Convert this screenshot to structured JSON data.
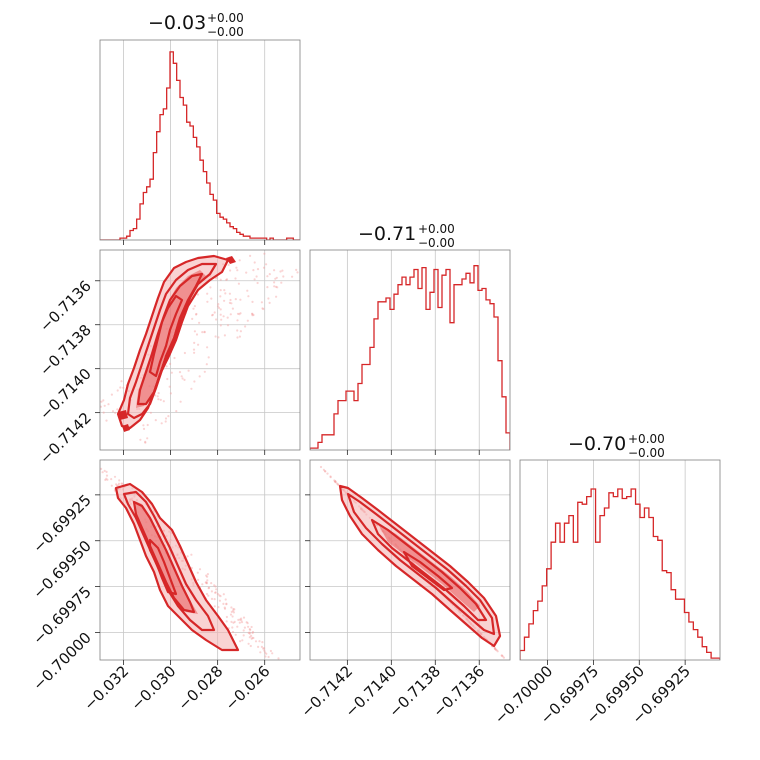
{
  "chart_data": {
    "type": "corner",
    "color": "#d62728",
    "parameters": [
      {
        "title_value": "−0.03",
        "title_upper": "+0.00",
        "title_lower": "−0.00",
        "range": [
          -0.033,
          -0.0245
        ],
        "ticks": [
          -0.032,
          -0.03,
          -0.028,
          -0.026
        ],
        "tick_labels": [
          "−0.032",
          "−0.030",
          "−0.028",
          "−0.026"
        ]
      },
      {
        "title_value": "−0.71",
        "title_upper": "+0.00",
        "title_lower": "−0.00",
        "range": [
          -0.71437,
          -0.71346
        ],
        "ticks": [
          -0.7142,
          -0.714,
          -0.7138,
          -0.7136
        ],
        "tick_labels": [
          "−0.7142",
          "−0.7140",
          "−0.7138",
          "−0.7136"
        ]
      },
      {
        "title_value": "−0.70",
        "title_upper": "+0.00",
        "title_lower": "−0.00",
        "range": [
          -0.70015,
          -0.69906
        ],
        "ticks": [
          -0.7,
          -0.69975,
          -0.6995,
          -0.69925
        ],
        "tick_labels": [
          "−0.70000",
          "−0.69975",
          "−0.69950",
          "−0.69925"
        ]
      }
    ],
    "histograms": [
      {
        "parameter": 0,
        "edges_range": [
          -0.033,
          -0.0245
        ],
        "max": 1.0,
        "counts": [
          0,
          0,
          0,
          0,
          0,
          0,
          0.01,
          0.01,
          0.02,
          0.05,
          0.06,
          0.11,
          0.19,
          0.25,
          0.28,
          0.32,
          0.46,
          0.57,
          0.66,
          0.69,
          0.8,
          0.99,
          0.93,
          0.84,
          0.75,
          0.71,
          0.62,
          0.6,
          0.54,
          0.49,
          0.42,
          0.36,
          0.3,
          0.24,
          0.21,
          0.14,
          0.12,
          0.11,
          0.09,
          0.07,
          0.06,
          0.04,
          0.03,
          0.02,
          0.02,
          0.01,
          0.01,
          0.01,
          0.01,
          0.01,
          0,
          0.01,
          0,
          0,
          0,
          0,
          0.01,
          0.01,
          0,
          0
        ]
      },
      {
        "parameter": 1,
        "edges_range": [
          -0.71437,
          -0.71346
        ],
        "max": 1.0,
        "counts": [
          0.01,
          0.01,
          0.04,
          0.08,
          0.08,
          0.08,
          0.19,
          0.26,
          0.26,
          0.31,
          0.31,
          0.26,
          0.35,
          0.45,
          0.45,
          0.54,
          0.69,
          0.78,
          0.78,
          0.8,
          0.74,
          0.82,
          0.87,
          0.91,
          0.87,
          0.91,
          0.95,
          0.85,
          0.96,
          0.74,
          0.83,
          0.95,
          0.75,
          0.92,
          0.95,
          0.67,
          0.87,
          0.87,
          0.9,
          0.93,
          0.88,
          0.97,
          0.84,
          0.85,
          0.79,
          0.77,
          0.7,
          0.47,
          0.28,
          0.09
        ]
      },
      {
        "parameter": 2,
        "edges_range": [
          -0.70015,
          -0.69906
        ],
        "max": 1.0,
        "counts": [
          0.05,
          0.12,
          0.19,
          0.26,
          0.31,
          0.39,
          0.48,
          0.62,
          0.72,
          0.62,
          0.72,
          0.76,
          0.62,
          0.83,
          0.82,
          0.86,
          0.9,
          0.62,
          0.76,
          0.8,
          0.88,
          0.86,
          0.9,
          0.85,
          0.86,
          0.9,
          0.82,
          0.75,
          0.8,
          0.75,
          0.65,
          0.63,
          0.47,
          0.46,
          0.37,
          0.32,
          0.32,
          0.25,
          0.2,
          0.16,
          0.12,
          0.07,
          0.04,
          0.01,
          0.01
        ]
      }
    ],
    "contour_levels": 4,
    "grid": true
  }
}
